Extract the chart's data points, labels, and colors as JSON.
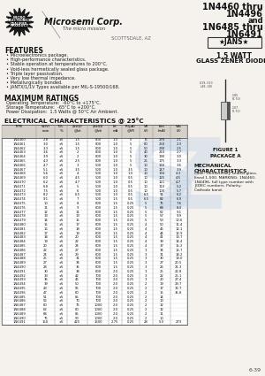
{
  "title_lines": [
    "1N4460 thru",
    "1N4496",
    "and",
    "1N6485 thru",
    "1N6491"
  ],
  "jans_label": "★JANS★",
  "subtitle_line1": "1.5 WATT",
  "subtitle_line2": "GLASS ZENER DIODES",
  "company": "Microsemi Corp.",
  "tagline": "The micro mission",
  "scottsdale": "SCOTTSDALE, AZ",
  "features_title": "FEATURES",
  "features": [
    "Microelectronics package.",
    "High-performance characteristics.",
    "Stable operation at temperatures to 200°C.",
    "Void-less hermetically sealed glass package.",
    "Triple layer passivation.",
    "Very low thermal impedance.",
    "Metallurgically bonded.",
    "JANTX/1/1V Types available per MIL-S-19500/168."
  ],
  "max_ratings_title": "MAXIMUM RATINGS",
  "max_ratings": [
    "Operating Temperature:  -60°C to +175°C.",
    "Storage Temperature:  -65°C to +200°C.",
    "Power Dissipation:  1.5 Watts @ 50°C Air Ambient."
  ],
  "elec_char_title": "ELECTRICAL CHARACTERISTICS @ 25°C",
  "col_headers": [
    "TYPE",
    "Vz(V)\nnom",
    "TOL\n%",
    "Zzt(Ω)\n@Izt",
    "Zzk(Ω)\n@Izk",
    "Izt\nmA",
    "IR(μA)\n@VR",
    "VR\n(V)",
    "Izm\n(mA)",
    "Vdc\n(V)"
  ],
  "table_data": [
    [
      "1N4460",
      "2.8",
      "±5",
      "1.5",
      "800",
      "1.0",
      "5",
      "75",
      "270",
      "2.1"
    ],
    [
      "1N4461",
      "3.0",
      "±5",
      "1.5",
      "800",
      "1.0",
      "5",
      "60",
      "250",
      "2.3"
    ],
    [
      "1N4462",
      "3.3",
      "±5",
      "1.5",
      "800",
      "1.0",
      "5",
      "50",
      "230",
      "2.5"
    ],
    [
      "1N4463",
      "3.6",
      "±5",
      "2",
      "800",
      "1.0",
      "5",
      "40",
      "210",
      "2.7"
    ],
    [
      "1N4464",
      "3.9",
      "±5",
      "2",
      "800",
      "1.0",
      "5",
      "30",
      "190",
      "3.0"
    ],
    [
      "1N4465",
      "4.3",
      "±5",
      "2.5",
      "800",
      "1.0",
      "5",
      "25",
      "175",
      "3.3"
    ],
    [
      "1N4466",
      "4.7",
      "±5",
      "3",
      "500",
      "1.0",
      "5",
      "10",
      "160",
      "3.6"
    ],
    [
      "1N4467",
      "5.1",
      "±5",
      "3.5",
      "500",
      "1.0",
      "3.5",
      "10",
      "147",
      "3.9"
    ],
    [
      "1N4468",
      "5.6",
      "±5",
      "4",
      "500",
      "1.0",
      "1.0",
      "10",
      "134",
      "4.3"
    ],
    [
      "1N4469",
      "6.0",
      "±5",
      "4.5",
      "500",
      "1.0",
      "0.5",
      "10",
      "125",
      "4.5"
    ],
    [
      "1N4470",
      "6.2",
      "±5",
      "4.7",
      "500",
      "1.0",
      "0.5",
      "10",
      "121",
      "4.7"
    ],
    [
      "1N4471",
      "6.8",
      "±5",
      "5",
      "500",
      "1.0",
      "0.5",
      "10",
      "110",
      "5.2"
    ],
    [
      "1N4472",
      "7.5",
      "±5",
      "6",
      "500",
      "1.0",
      "0.5",
      "10",
      "100",
      "5.7"
    ],
    [
      "1N4473",
      "8.2",
      "±5",
      "6.5",
      "500",
      "1.0",
      "0.5",
      "6.5",
      "91",
      "6.2"
    ],
    [
      "1N4474",
      "9.1",
      "±5",
      "7",
      "500",
      "1.5",
      "0.5",
      "6.5",
      "82",
      "6.9"
    ],
    [
      "1N4475",
      "10",
      "±5",
      "8",
      "600",
      "1.5",
      "0.25",
      "5",
      "75",
      "7.6"
    ],
    [
      "1N4476",
      "11",
      "±5",
      "9",
      "600",
      "1.5",
      "0.25",
      "5",
      "68",
      "8.4"
    ],
    [
      "1N4477",
      "12",
      "±5",
      "11",
      "600",
      "1.5",
      "0.25",
      "5",
      "62",
      "9.1"
    ],
    [
      "1N4478",
      "13",
      "±5",
      "13",
      "600",
      "1.5",
      "0.25",
      "5",
      "57",
      "9.9"
    ],
    [
      "1N4479",
      "14",
      "±5",
      "15",
      "600",
      "1.5",
      "0.25",
      "5",
      "53",
      "10.6"
    ],
    [
      "1N4480",
      "15",
      "±5",
      "17",
      "600",
      "1.5",
      "0.25",
      "4",
      "50",
      "11.4"
    ],
    [
      "1N4481",
      "16",
      "±5",
      "18",
      "600",
      "1.5",
      "0.25",
      "4",
      "46",
      "12.1"
    ],
    [
      "1N4482",
      "17",
      "±5",
      "19",
      "600",
      "1.5",
      "0.25",
      "4",
      "44",
      "12.9"
    ],
    [
      "1N4483",
      "18",
      "±5",
      "20",
      "600",
      "1.5",
      "0.25",
      "4",
      "41",
      "13.7"
    ],
    [
      "1N4484",
      "19",
      "±5",
      "22",
      "600",
      "1.5",
      "0.25",
      "4",
      "39",
      "14.4"
    ],
    [
      "1N4485",
      "20",
      "±5",
      "24",
      "600",
      "1.5",
      "0.25",
      "4",
      "37",
      "15.2"
    ],
    [
      "1N4486",
      "22",
      "±5",
      "27",
      "600",
      "1.5",
      "0.25",
      "3",
      "34",
      "16.7"
    ],
    [
      "1N4487",
      "24",
      "±5",
      "29",
      "600",
      "1.5",
      "0.25",
      "3",
      "31",
      "18.2"
    ],
    [
      "1N4488",
      "25",
      "±5",
      "31",
      "600",
      "1.5",
      "0.25",
      "3",
      "30",
      "19.0"
    ],
    [
      "1N4489",
      "27",
      "±5",
      "34",
      "600",
      "1.5",
      "0.25",
      "3",
      "27",
      "20.5"
    ],
    [
      "1N4490",
      "28",
      "±5",
      "35",
      "600",
      "1.5",
      "0.25",
      "3",
      "26",
      "21.3"
    ],
    [
      "1N4491",
      "30",
      "±5",
      "38",
      "600",
      "2.0",
      "0.25",
      "3",
      "25",
      "22.8"
    ],
    [
      "1N4492",
      "33",
      "±5",
      "42",
      "700",
      "2.0",
      "0.25",
      "3",
      "22",
      "25.1"
    ],
    [
      "1N4493",
      "36",
      "±5",
      "46",
      "700",
      "2.0",
      "0.25",
      "3",
      "20",
      "27.4"
    ],
    [
      "1N4494",
      "39",
      "±5",
      "50",
      "700",
      "2.0",
      "0.25",
      "2",
      "19",
      "29.7"
    ],
    [
      "1N4495",
      "43",
      "±5",
      "55",
      "700",
      "2.0",
      "0.25",
      "2",
      "17",
      "32.7"
    ],
    [
      "1N4496",
      "47",
      "±5",
      "60",
      "700",
      "2.0",
      "0.25",
      "2",
      "15",
      "35.8"
    ],
    [
      "1N6485",
      "51",
      "±5",
      "65",
      "700",
      "2.0",
      "0.25",
      "2",
      "14",
      ""
    ],
    [
      "1N6486",
      "56",
      "±5",
      "70",
      "700",
      "2.0",
      "0.25",
      "2",
      "13",
      ""
    ],
    [
      "1N6487",
      "60",
      "±5",
      "75",
      "1000",
      "2.0",
      "0.25",
      "2",
      "12",
      ""
    ],
    [
      "1N6488",
      "62",
      "±5",
      "80",
      "1000",
      "2.0",
      "0.25",
      "2",
      "12",
      ""
    ],
    [
      "1N6489",
      "68",
      "±5",
      "85",
      "1000",
      "2.0",
      "0.25",
      "2",
      "11",
      ""
    ],
    [
      "1N6490",
      "75",
      "±5",
      "90",
      "1000",
      "2.0",
      "0.25",
      "2",
      "10",
      ""
    ],
    [
      "1N6491",
      "150",
      "±5",
      "425",
      "1500",
      "2.75",
      "0.25",
      "28",
      "5.0",
      "273"
    ]
  ],
  "figure_title": "FIGURE 1",
  "figure_subtitle": "PACKAGE A",
  "mech_title": "MECHANICAL\nCHARACTERISTICS",
  "mech_lines": [
    "Case: Hermetically sealed glass-",
    "lined 1-500. MARKING: 1N4460-",
    "1N4496, full type number with",
    "JEDEC numbers. Polarity:",
    "Cathode band."
  ],
  "page_num": "6-39",
  "bg_color": "#f5f2ee",
  "watermark_color": "#c8d8e8"
}
